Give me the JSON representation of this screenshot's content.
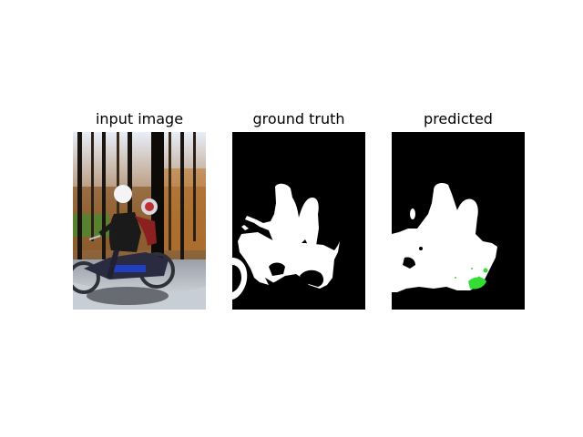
{
  "panels": [
    {
      "title": "input image",
      "content": "photo of two riders on a dirt motorcycle in a forest"
    },
    {
      "title": "ground truth",
      "content": "binary segmentation mask"
    },
    {
      "title": "predicted",
      "content": "predicted segmentation mask"
    }
  ],
  "colors": {
    "mask_foreground": "#ffffff",
    "mask_background": "#000000",
    "error_highlight": "#33dd33"
  }
}
